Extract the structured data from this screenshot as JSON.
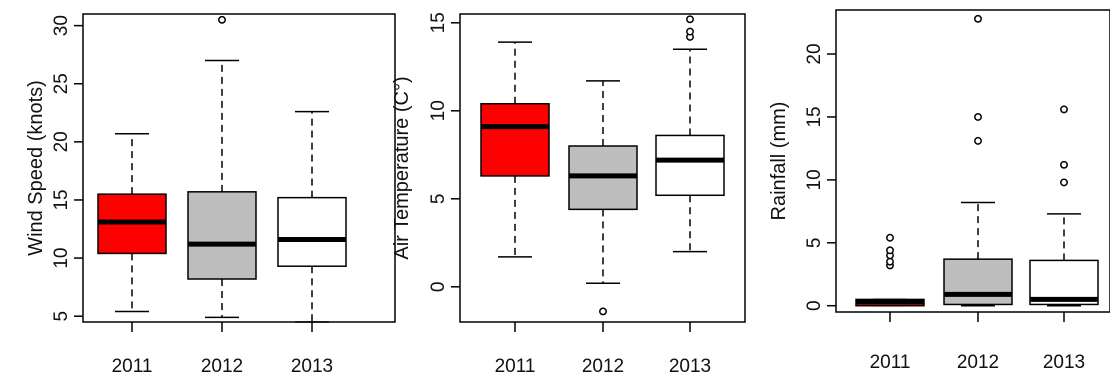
{
  "chart_data": [
    {
      "type": "box",
      "ylabel": "Wind Speed (knots)",
      "categories": [
        "2011",
        "2012",
        "2013"
      ],
      "ylim": [
        4.5,
        31
      ],
      "yticks": [
        5,
        10,
        15,
        20,
        25,
        30
      ],
      "colors": [
        "#ff0000",
        "#bebebe",
        "#ffffff"
      ],
      "boxes": [
        {
          "name": "2011",
          "whisker_low": 5.4,
          "q1": 10.4,
          "median": 13.1,
          "q3": 15.5,
          "whisker_high": 20.7,
          "outliers": []
        },
        {
          "name": "2012",
          "whisker_low": 4.9,
          "q1": 8.2,
          "median": 11.2,
          "q3": 15.7,
          "whisker_high": 27.0,
          "outliers": [
            30.5
          ]
        },
        {
          "name": "2013",
          "whisker_low": 4.5,
          "q1": 9.3,
          "median": 11.6,
          "q3": 15.2,
          "whisker_high": 22.6,
          "outliers": []
        }
      ]
    },
    {
      "type": "box",
      "ylabel": "Air Temperature (C°)",
      "categories": [
        "2011",
        "2012",
        "2013"
      ],
      "ylim": [
        -2,
        15.5
      ],
      "yticks": [
        0,
        5,
        10,
        15
      ],
      "colors": [
        "#ff0000",
        "#bebebe",
        "#ffffff"
      ],
      "boxes": [
        {
          "name": "2011",
          "whisker_low": 1.7,
          "q1": 6.3,
          "median": 9.1,
          "q3": 10.4,
          "whisker_high": 13.9,
          "outliers": []
        },
        {
          "name": "2012",
          "whisker_low": 0.2,
          "q1": 4.4,
          "median": 6.3,
          "q3": 8.0,
          "whisker_high": 11.7,
          "outliers": [
            -1.4
          ]
        },
        {
          "name": "2013",
          "whisker_low": 2.0,
          "q1": 5.2,
          "median": 7.2,
          "q3": 8.6,
          "whisker_high": 13.5,
          "outliers": [
            14.2,
            14.5,
            15.2
          ]
        }
      ]
    },
    {
      "type": "box",
      "ylabel": "Rainfall (mm)",
      "categories": [
        "2011",
        "2012",
        "2013"
      ],
      "ylim": [
        -0.5,
        23.5
      ],
      "yticks": [
        0,
        5,
        10,
        15,
        20
      ],
      "colors": [
        "#ff0000",
        "#bebebe",
        "#ffffff"
      ],
      "boxes": [
        {
          "name": "2011",
          "whisker_low": 0.0,
          "q1": 0.0,
          "median": 0.3,
          "q3": 0.5,
          "whisker_high": 0.5,
          "outliers": [
            3.2,
            3.5,
            4.0,
            4.4,
            5.4
          ]
        },
        {
          "name": "2012",
          "whisker_low": 0.0,
          "q1": 0.1,
          "median": 0.9,
          "q3": 3.7,
          "whisker_high": 8.2,
          "outliers": [
            13.1,
            15.0,
            22.8
          ]
        },
        {
          "name": "2013",
          "whisker_low": 0.0,
          "q1": 0.1,
          "median": 0.5,
          "q3": 3.6,
          "whisker_high": 7.3,
          "outliers": [
            9.8,
            11.2,
            15.6
          ]
        }
      ]
    }
  ]
}
